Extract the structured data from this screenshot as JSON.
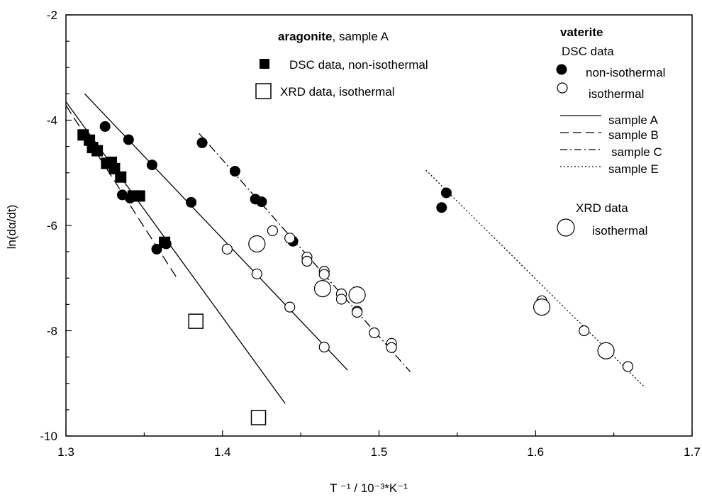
{
  "chart_data": {
    "type": "scatter",
    "xlabel": "T ⁻¹  /  10⁻³*K⁻¹",
    "ylabel": "ln(dα/dt)",
    "xlim": [
      1.3,
      1.7
    ],
    "ylim": [
      -10,
      -2
    ],
    "x_ticks": [
      "1.3",
      "1.4",
      "1.5",
      "1.6",
      "1.7"
    ],
    "y_ticks": [
      "-10",
      "-8",
      "-6",
      "-4",
      "-2"
    ],
    "grid": false,
    "legend_aragonite": {
      "title_bold": "aragonite",
      "title_rest": ", sample A",
      "entries": [
        "DSC data,  non-isothermal",
        "XRD data,  isothermal"
      ]
    },
    "legend_vaterite": {
      "title": "vaterite",
      "subtitle_dsc": "DSC data",
      "dsc_entries": [
        "non-isothermal",
        "isothermal"
      ],
      "line_entries": [
        "sample A",
        "sample B",
        "sample C",
        "sample E"
      ],
      "subtitle_xrd": "XRD data",
      "xrd_entry": "isothermal"
    },
    "series": [
      {
        "name": "aragonite DSC non-isothermal",
        "marker": "square-filled",
        "points": [
          [
            1.311,
            -4.28
          ],
          [
            1.315,
            -4.38
          ],
          [
            1.317,
            -4.52
          ],
          [
            1.32,
            -4.58
          ],
          [
            1.326,
            -4.82
          ],
          [
            1.329,
            -4.8
          ],
          [
            1.331,
            -4.92
          ],
          [
            1.335,
            -5.08
          ],
          [
            1.343,
            -5.44
          ],
          [
            1.347,
            -5.44
          ],
          [
            1.363,
            -6.32
          ]
        ]
      },
      {
        "name": "aragonite XRD isothermal",
        "marker": "square-open",
        "points": [
          [
            1.383,
            -7.82
          ],
          [
            1.423,
            -9.65
          ]
        ]
      },
      {
        "name": "vaterite DSC non-isothermal",
        "marker": "circle-filled",
        "points": [
          [
            1.325,
            -4.12
          ],
          [
            1.34,
            -4.37
          ],
          [
            1.326,
            -4.82
          ],
          [
            1.355,
            -4.85
          ],
          [
            1.336,
            -5.42
          ],
          [
            1.341,
            -5.48
          ],
          [
            1.358,
            -6.45
          ],
          [
            1.364,
            -6.35
          ],
          [
            1.38,
            -5.56
          ],
          [
            1.387,
            -4.43
          ],
          [
            1.408,
            -4.97
          ],
          [
            1.421,
            -5.5
          ],
          [
            1.425,
            -5.55
          ],
          [
            1.445,
            -6.3
          ],
          [
            1.54,
            -5.66
          ],
          [
            1.543,
            -5.38
          ]
        ]
      },
      {
        "name": "vaterite DSC isothermal",
        "marker": "circle-open",
        "points": [
          [
            1.403,
            -6.45
          ],
          [
            1.422,
            -6.92
          ],
          [
            1.432,
            -6.1
          ],
          [
            1.443,
            -6.24
          ],
          [
            1.443,
            -7.55
          ],
          [
            1.454,
            -6.6
          ],
          [
            1.454,
            -6.68
          ],
          [
            1.465,
            -6.87
          ],
          [
            1.465,
            -6.93
          ],
          [
            1.465,
            -8.31
          ],
          [
            1.476,
            -7.3
          ],
          [
            1.476,
            -7.4
          ],
          [
            1.486,
            -7.63
          ],
          [
            1.486,
            -7.65
          ],
          [
            1.497,
            -8.04
          ],
          [
            1.508,
            -8.24
          ],
          [
            1.508,
            -8.32
          ],
          [
            1.604,
            -7.43
          ],
          [
            1.631,
            -8.0
          ],
          [
            1.659,
            -8.68
          ]
        ]
      },
      {
        "name": "vaterite XRD isothermal",
        "marker": "circle-open-large",
        "points": [
          [
            1.422,
            -6.35
          ],
          [
            1.464,
            -7.2
          ],
          [
            1.486,
            -7.32
          ],
          [
            1.604,
            -7.55
          ],
          [
            1.645,
            -8.38
          ]
        ]
      }
    ],
    "lines": [
      {
        "name": "aragonite fit",
        "style": "solid",
        "x": [
          1.3,
          1.44
        ],
        "y": [
          -3.65,
          -9.38
        ]
      },
      {
        "name": "sample A",
        "style": "solid",
        "x": [
          1.312,
          1.48
        ],
        "y": [
          -3.5,
          -8.75
        ]
      },
      {
        "name": "sample B",
        "style": "dashed",
        "x": [
          1.3,
          1.372
        ],
        "y": [
          -3.72,
          -7.05
        ]
      },
      {
        "name": "sample C",
        "style": "dashdot",
        "x": [
          1.385,
          1.52
        ],
        "y": [
          -4.25,
          -8.78
        ]
      },
      {
        "name": "sample E",
        "style": "dotted",
        "x": [
          1.53,
          1.67
        ],
        "y": [
          -4.95,
          -9.08
        ]
      }
    ]
  }
}
